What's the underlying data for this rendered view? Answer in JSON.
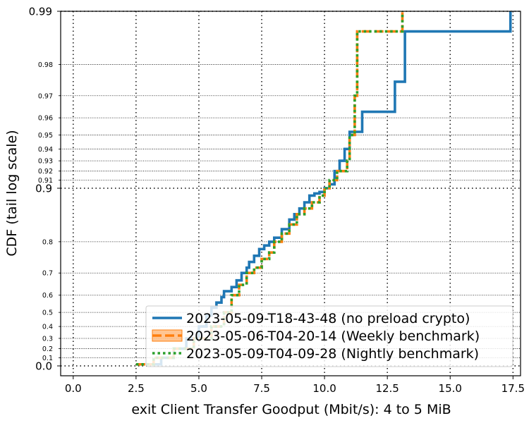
{
  "chart_data": {
    "type": "line",
    "xlabel": "exit Client Transfer Goodput (Mbit/s): 4 to 5 MiB",
    "ylabel": "CDF (tail log scale)",
    "xlim": [
      -0.5,
      17.8
    ],
    "x_ticks": [
      0.0,
      2.5,
      5.0,
      7.5,
      10.0,
      12.5,
      15.0,
      17.5
    ],
    "x_tick_labels": [
      "0.0",
      "2.5",
      "5.0",
      "7.5",
      "10.0",
      "12.5",
      "15.0",
      "17.5"
    ],
    "y_major_ticks": [
      0.0,
      0.9,
      0.99
    ],
    "y_major_labels": [
      "0.0",
      "0.9",
      "0.99"
    ],
    "y_minor_ticks": [
      0.1,
      0.2,
      0.3,
      0.4,
      0.5,
      0.6,
      0.7,
      0.8,
      0.91,
      0.92,
      0.93,
      0.94,
      0.95,
      0.96,
      0.97,
      0.98
    ],
    "y_minor_labels": [
      "0.1",
      "0.2",
      "0.3",
      "0.4",
      "0.5",
      "0.6",
      "0.7",
      "0.8",
      "0.91",
      "0.92",
      "0.93",
      "0.94",
      "0.95",
      "0.96",
      "0.97",
      "0.98"
    ],
    "grid": true,
    "legend_position": "lower-right",
    "series": [
      {
        "name": "2023-05-09-T18-43-48 (no preload crypto)",
        "color": "#1f77b4",
        "style": "solid",
        "x": [
          2.9,
          3.5,
          4.0,
          4.5,
          5.0,
          5.3,
          5.5,
          5.7,
          5.9,
          6.0,
          6.3,
          6.5,
          6.7,
          6.9,
          7.0,
          7.2,
          7.4,
          7.6,
          7.8,
          8.0,
          8.3,
          8.6,
          8.8,
          9.0,
          9.2,
          9.4,
          9.6,
          9.8,
          10.0,
          10.2,
          10.4,
          10.6,
          10.8,
          11.0,
          11.5,
          12.8,
          13.2,
          16.5,
          17.4
        ],
        "y": [
          0.02,
          0.1,
          0.2,
          0.3,
          0.4,
          0.48,
          0.53,
          0.56,
          0.59,
          0.62,
          0.64,
          0.67,
          0.7,
          0.72,
          0.74,
          0.76,
          0.78,
          0.79,
          0.8,
          0.81,
          0.83,
          0.85,
          0.86,
          0.87,
          0.88,
          0.89,
          0.893,
          0.895,
          0.9,
          0.905,
          0.92,
          0.93,
          0.94,
          0.952,
          0.963,
          0.975,
          0.987,
          0.987,
          0.99
        ]
      },
      {
        "name": "2023-05-06-T04-20-14 (Weekly benchmark)",
        "color": "#ff7f0e",
        "style": "dashed",
        "x": [
          2.5,
          3.2,
          4.0,
          4.8,
          5.5,
          6.0,
          6.3,
          6.6,
          6.9,
          7.2,
          7.5,
          7.8,
          8.0,
          8.3,
          8.6,
          8.9,
          9.2,
          9.5,
          9.8,
          10.0,
          10.2,
          10.5,
          10.9,
          11.0,
          11.2,
          11.3,
          13.1
        ],
        "y": [
          0.02,
          0.1,
          0.2,
          0.3,
          0.4,
          0.5,
          0.6,
          0.65,
          0.7,
          0.72,
          0.75,
          0.77,
          0.8,
          0.82,
          0.84,
          0.86,
          0.87,
          0.88,
          0.89,
          0.9,
          0.91,
          0.92,
          0.93,
          0.95,
          0.97,
          0.987,
          0.99
        ]
      },
      {
        "name": "2023-05-09-T04-09-28 (Nightly benchmark)",
        "color": "#2ca02c",
        "style": "dotted",
        "x": [
          2.5,
          3.2,
          4.0,
          4.8,
          5.5,
          6.0,
          6.3,
          6.6,
          6.9,
          7.2,
          7.5,
          7.8,
          8.0,
          8.3,
          8.6,
          8.9,
          9.2,
          9.5,
          9.8,
          10.0,
          10.2,
          10.5,
          10.9,
          11.0,
          11.2,
          11.3,
          13.1
        ],
        "y": [
          0.02,
          0.1,
          0.2,
          0.3,
          0.4,
          0.5,
          0.6,
          0.65,
          0.7,
          0.72,
          0.75,
          0.77,
          0.8,
          0.82,
          0.84,
          0.86,
          0.87,
          0.88,
          0.89,
          0.9,
          0.91,
          0.92,
          0.93,
          0.95,
          0.97,
          0.987,
          0.99
        ]
      }
    ]
  }
}
